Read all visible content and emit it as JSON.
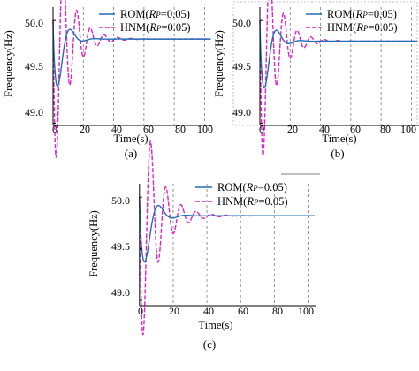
{
  "colors": {
    "rom": "#1f6fb5",
    "hnm": "#e020c8",
    "grid": "#7a7a7a",
    "axis": "#000000"
  },
  "chart_data": [
    {
      "type": "line",
      "caption": "(a)",
      "xlabel": "Time(s)",
      "ylabel": "Frequency(Hz)",
      "xlim": [
        0,
        105
      ],
      "ylim": [
        48.98,
        50.13
      ],
      "xticks": [
        0,
        20,
        40,
        60,
        80,
        100
      ],
      "xtick_labels": [
        "0",
        "20",
        "40",
        "60",
        "80",
        "100"
      ],
      "yticks": [
        49.0,
        49.5,
        50.0
      ],
      "ytick_labels": [
        "49.0",
        "49.5",
        "50.0"
      ],
      "grid": "dashed-vertical",
      "legend_position": "top-right",
      "series": [
        {
          "name": "ROM(Rp=0.05)",
          "legend_prefix": "ROM(",
          "legend_italic": "R",
          "legend_sub": "P",
          "legend_suffix": "=0.05)",
          "color_key": "rom",
          "dash": "solid",
          "model": {
            "f0": 50.0,
            "fss": 49.82,
            "amp": 0.9,
            "tau": 5.2,
            "period": 16.5,
            "phase": -1.5,
            "rise": 1.0
          }
        },
        {
          "name": "HNM(Rp=0.05)",
          "legend_prefix": "HNM(",
          "legend_italic": "R",
          "legend_sub": "P",
          "legend_suffix": "=0.05)",
          "color_key": "hnm",
          "dash": "dashed",
          "model": {
            "f0": 50.0,
            "fss": 49.82,
            "amp": 1.45,
            "tau": 9.5,
            "period": 9.0,
            "phase": -1.35,
            "rise": 0.8
          }
        }
      ]
    },
    {
      "type": "line",
      "caption": "(b)",
      "xlabel": "Time(s)",
      "ylabel": "Frequency(Hz)",
      "xlim": [
        0,
        105
      ],
      "ylim": [
        48.98,
        50.13
      ],
      "xticks": [
        0,
        20,
        40,
        60,
        80,
        100
      ],
      "xtick_labels": [
        "0",
        "20",
        "40",
        "60",
        "80",
        "100"
      ],
      "yticks": [
        49.0,
        49.5,
        50.0
      ],
      "ytick_labels": [
        "49.0",
        "49.5",
        "50.0"
      ],
      "grid": "dashed-vertical",
      "legend_position": "top-right",
      "series": [
        {
          "name": "ROM(Rp=0.05)",
          "legend_prefix": "ROM(",
          "legend_italic": "R",
          "legend_sub": "P",
          "legend_suffix": "=0.05)",
          "color_key": "rom",
          "dash": "solid",
          "model": {
            "f0": 50.0,
            "fss": 49.8,
            "amp": 0.85,
            "tau": 5.5,
            "period": 16.0,
            "phase": -1.5,
            "rise": 1.0
          }
        },
        {
          "name": "HNM(Rp=0.05)",
          "legend_prefix": "HNM(",
          "legend_italic": "R",
          "legend_sub": "P",
          "legend_suffix": "=0.05)",
          "color_key": "hnm",
          "dash": "dashed",
          "model": {
            "f0": 50.0,
            "fss": 49.8,
            "amp": 1.4,
            "tau": 9.5,
            "period": 9.0,
            "phase": -1.35,
            "rise": 0.8
          }
        }
      ]
    },
    {
      "type": "line",
      "caption": "(c)",
      "xlabel": "Time(s)",
      "ylabel": "Frequency(Hz)",
      "xlim": [
        -2,
        105
      ],
      "ylim": [
        48.95,
        50.13
      ],
      "xticks": [
        0,
        20,
        40,
        60,
        80,
        100
      ],
      "xtick_labels": [
        "0",
        "20",
        "40",
        "60",
        "80",
        "100"
      ],
      "yticks": [
        49.0,
        49.5,
        50.0
      ],
      "ytick_labels": [
        "49.0",
        "49.5",
        "50.0"
      ],
      "grid": "dashed-vertical",
      "legend_position": "top-right",
      "series": [
        {
          "name": "ROM(Rp=0.05)",
          "legend_prefix": "ROM(",
          "legend_italic": "R",
          "legend_sub": "P",
          "legend_suffix": "=0.05)",
          "color_key": "rom",
          "dash": "solid",
          "model": {
            "f0": 50.0,
            "fss": 49.82,
            "amp": 0.85,
            "tau": 5.5,
            "period": 16.5,
            "phase": -1.5,
            "rise": 1.0
          }
        },
        {
          "name": "HNM(Rp=0.05)",
          "legend_prefix": "HNM(",
          "legend_italic": "R",
          "legend_sub": "P",
          "legend_suffix": "=0.05)",
          "color_key": "hnm",
          "dash": "dashed",
          "model": {
            "f0": 50.0,
            "fss": 49.82,
            "amp": 1.45,
            "tau": 9.5,
            "period": 9.0,
            "phase": -1.35,
            "rise": 0.8
          }
        }
      ]
    }
  ]
}
